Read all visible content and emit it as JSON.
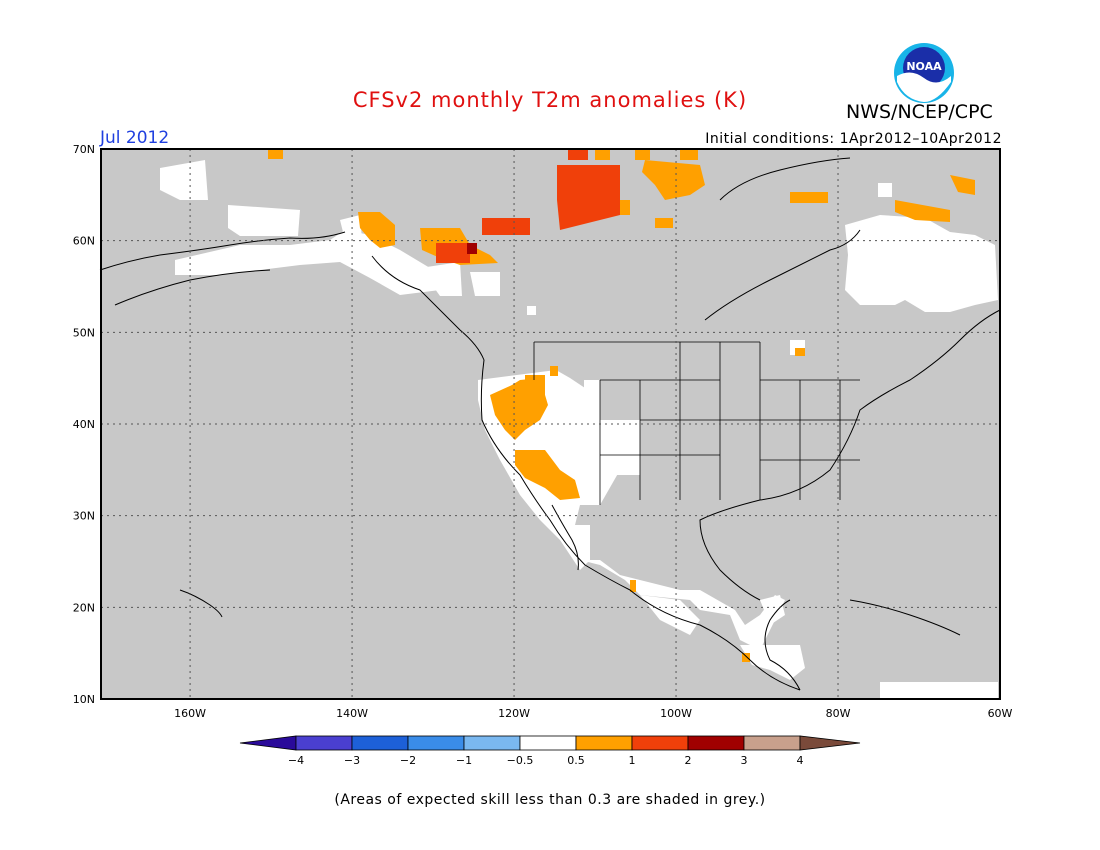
{
  "title": "CFSv2 monthly T2m anomalies (K)",
  "agency": "NWS/NCEP/CPC",
  "logo_text": "NOAA",
  "period": "Jul 2012",
  "initial_conditions": "Initial conditions: 1Apr2012–10Apr2012",
  "note": "(Areas of expected skill less than 0.3 are shaded in grey.)",
  "map": {
    "lon_range": [
      -171,
      -60
    ],
    "lat_range": [
      10,
      70
    ],
    "lat_labels": [
      "10N",
      "20N",
      "30N",
      "40N",
      "50N",
      "60N",
      "70N"
    ],
    "lon_labels": [
      "160W",
      "140W",
      "120W",
      "100W",
      "80W",
      "60W"
    ],
    "background_color": "#c8c8c8"
  },
  "colorbar": {
    "labels": [
      "−4",
      "−3",
      "−2",
      "−1",
      "−0.5",
      "0.5",
      "1",
      "2",
      "3",
      "4"
    ],
    "colors": [
      "#2a0a9a",
      "#4a3fd0",
      "#1d60d8",
      "#3a8ce8",
      "#7ab8f0",
      "#ffffff",
      "#ffa000",
      "#f0400a",
      "#a00000",
      "#c8a08c",
      "#7a4a3a"
    ]
  }
}
